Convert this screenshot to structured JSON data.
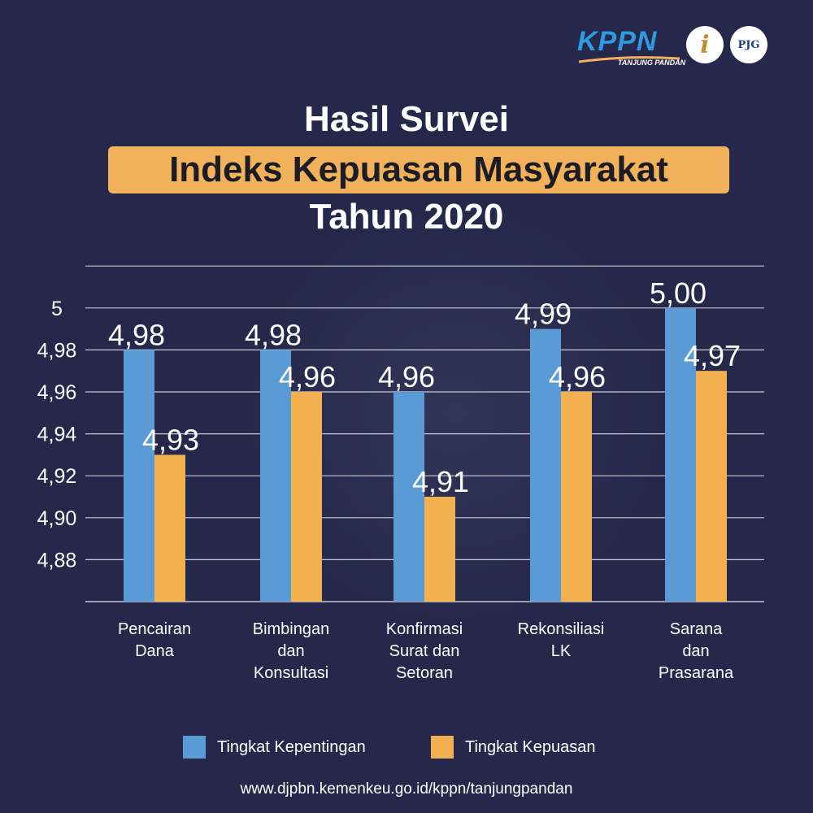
{
  "header": {
    "logo_kppn": "KPPN",
    "logo_kppn_sub": "TANJUNG PANDAN",
    "logo_info": "i",
    "logo_pjg": "PJG"
  },
  "title": {
    "line1": "Hasil Survei",
    "line2": "Indeks Kepuasan Masyarakat",
    "line3": "Tahun 2020"
  },
  "colors": {
    "background": "#25284a",
    "kepentingan": "#5b9bd5",
    "kepuasan": "#f2b04f",
    "highlight": "#f2b25c"
  },
  "chart_data": {
    "type": "bar",
    "categories": [
      [
        "Pencairan",
        "Dana"
      ],
      [
        "Bimbingan",
        "dan",
        "Konsultasi"
      ],
      [
        "Konfirmasi",
        "Surat dan",
        "Setoran"
      ],
      [
        "Rekonsiliasi",
        "LK"
      ],
      [
        "Sarana",
        "dan",
        "Prasarana"
      ]
    ],
    "series": [
      {
        "name": "Tingkat Kepentingan",
        "values": [
          4.98,
          4.98,
          4.96,
          4.99,
          5.0
        ],
        "labels": [
          "4,98",
          "4,98",
          "4,96",
          "4,99",
          "5,00"
        ]
      },
      {
        "name": "Tingkat Kepuasan",
        "values": [
          4.93,
          4.96,
          4.91,
          4.96,
          4.97
        ],
        "labels": [
          "4,93",
          "4,96",
          "4,91",
          "4,96",
          "4,97"
        ]
      }
    ],
    "yticks": [
      4.88,
      4.9,
      4.92,
      4.94,
      4.96,
      4.98,
      5.0
    ],
    "ytick_labels": [
      "4,88",
      "4,90",
      "4,92",
      "4,94",
      "4,96",
      "4,98",
      "5"
    ],
    "ylim": [
      4.86,
      5.02
    ],
    "grid": true,
    "legend_position": "bottom"
  },
  "footer": {
    "url": "www.djpbn.kemenkeu.go.id/kppn/tanjungpandan"
  }
}
